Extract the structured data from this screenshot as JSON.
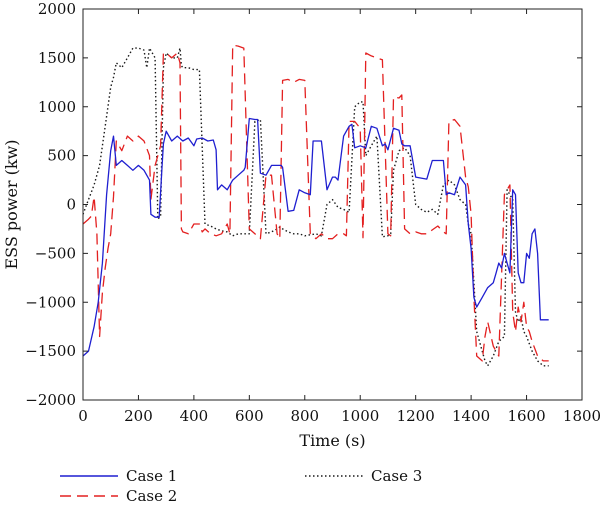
{
  "chart_data": {
    "type": "line",
    "title": "",
    "xlabel": "Time (s)",
    "ylabel": "ESS power (kw)",
    "xlim": [
      0,
      1800
    ],
    "ylim": [
      -2000,
      2000
    ],
    "xticks": [
      0,
      200,
      400,
      600,
      800,
      1000,
      1200,
      1400,
      1600,
      1800
    ],
    "yticks": [
      -2000,
      -1500,
      -1000,
      -500,
      0,
      500,
      1000,
      1500,
      2000
    ],
    "xtick_labels": [
      "0",
      "200",
      "400",
      "600",
      "800",
      "1000",
      "1200",
      "1400",
      "1600",
      "1800"
    ],
    "ytick_labels": [
      "−2000",
      "−1500",
      "−1000",
      "−500",
      "0",
      "500",
      "1000",
      "1500",
      "2000"
    ],
    "grid": false,
    "legend_placement": "bottom",
    "series": [
      {
        "name": "Case 1",
        "color": "#1f1fd0",
        "style": "solid",
        "x": [
          0,
          20,
          40,
          55,
          70,
          85,
          100,
          110,
          120,
          140,
          160,
          180,
          200,
          220,
          240,
          245,
          260,
          275,
          285,
          290,
          300,
          320,
          340,
          360,
          380,
          400,
          410,
          430,
          450,
          470,
          480,
          485,
          500,
          520,
          540,
          560,
          580,
          585,
          600,
          620,
          630,
          640,
          660,
          680,
          700,
          715,
          720,
          740,
          760,
          780,
          800,
          820,
          830,
          840,
          860,
          880,
          900,
          910,
          920,
          940,
          960,
          970,
          980,
          1000,
          1020,
          1040,
          1060,
          1080,
          1090,
          1100,
          1120,
          1140,
          1150,
          1160,
          1180,
          1200,
          1220,
          1240,
          1260,
          1280,
          1300,
          1310,
          1320,
          1340,
          1360,
          1380,
          1390,
          1400,
          1410,
          1420,
          1430,
          1440,
          1460,
          1480,
          1490,
          1500,
          1510,
          1520,
          1530,
          1540,
          1550,
          1560,
          1570,
          1580,
          1590,
          1600,
          1610,
          1620,
          1630,
          1640,
          1650,
          1660,
          1680
        ],
        "values": [
          -1550,
          -1500,
          -1250,
          -1000,
          -600,
          100,
          550,
          700,
          400,
          450,
          400,
          350,
          400,
          350,
          250,
          -100,
          -130,
          -130,
          380,
          620,
          750,
          650,
          700,
          650,
          680,
          600,
          670,
          680,
          650,
          660,
          560,
          150,
          200,
          150,
          250,
          300,
          350,
          380,
          880,
          870,
          870,
          320,
          300,
          400,
          400,
          400,
          380,
          -70,
          -60,
          150,
          120,
          100,
          650,
          650,
          650,
          150,
          280,
          280,
          250,
          700,
          800,
          820,
          580,
          600,
          580,
          800,
          780,
          600,
          620,
          560,
          780,
          760,
          620,
          600,
          600,
          280,
          270,
          260,
          450,
          450,
          450,
          100,
          120,
          100,
          280,
          200,
          -200,
          -450,
          -950,
          -1050,
          -1000,
          -950,
          -850,
          -800,
          -700,
          -600,
          -650,
          -500,
          -600,
          -700,
          150,
          100,
          -700,
          -800,
          -800,
          -500,
          -550,
          -300,
          -250,
          -500,
          -1180,
          -1180,
          -1180
        ]
      },
      {
        "name": "Case 2",
        "color": "#e32020",
        "style": "dashed",
        "x": [
          0,
          20,
          30,
          40,
          50,
          60,
          70,
          80,
          90,
          100,
          110,
          120,
          140,
          160,
          180,
          200,
          220,
          240,
          245,
          260,
          280,
          290,
          300,
          320,
          340,
          350,
          355,
          360,
          380,
          400,
          420,
          430,
          440,
          460,
          480,
          500,
          520,
          530,
          540,
          560,
          580,
          600,
          620,
          640,
          660,
          680,
          700,
          710,
          720,
          740,
          760,
          780,
          800,
          820,
          830,
          840,
          860,
          880,
          900,
          920,
          940,
          950,
          960,
          980,
          1000,
          1010,
          1020,
          1040,
          1060,
          1080,
          1100,
          1110,
          1120,
          1140,
          1150,
          1160,
          1180,
          1200,
          1220,
          1240,
          1260,
          1280,
          1300,
          1310,
          1320,
          1340,
          1360,
          1380,
          1390,
          1400,
          1410,
          1420,
          1440,
          1450,
          1460,
          1480,
          1500,
          1520,
          1530,
          1540,
          1550,
          1560,
          1570,
          1580,
          1590,
          1600,
          1610,
          1620,
          1640,
          1660,
          1680
        ],
        "values": [
          -200,
          -150,
          -120,
          80,
          -300,
          -1350,
          -900,
          -650,
          -450,
          -300,
          80,
          650,
          550,
          700,
          650,
          700,
          650,
          500,
          50,
          400,
          600,
          1550,
          1550,
          1500,
          1550,
          1450,
          -250,
          -280,
          -300,
          -200,
          -200,
          -280,
          -250,
          -300,
          -320,
          -300,
          -200,
          -300,
          1630,
          1620,
          1600,
          -250,
          -300,
          -350,
          300,
          300,
          -300,
          -350,
          1270,
          1280,
          1250,
          1280,
          1270,
          -300,
          -320,
          -350,
          -300,
          -350,
          -350,
          -300,
          -300,
          -320,
          850,
          850,
          780,
          -340,
          1550,
          1520,
          1500,
          1480,
          -300,
          -320,
          1100,
          1090,
          1120,
          -250,
          -300,
          -280,
          -300,
          -300,
          -260,
          -220,
          -280,
          -300,
          850,
          870,
          800,
          280,
          180,
          -100,
          -950,
          -1550,
          -1600,
          -1350,
          -1200,
          -1450,
          -1550,
          100,
          150,
          200,
          -1100,
          -1300,
          -1050,
          -1200,
          -1000,
          -1250,
          -1300,
          -1400,
          -1550,
          -1600,
          -1600
        ]
      },
      {
        "name": "Case 3",
        "color": "#1a1a1a",
        "style": "dotted",
        "x": [
          0,
          20,
          40,
          60,
          80,
          100,
          110,
          120,
          140,
          160,
          180,
          200,
          220,
          230,
          240,
          250,
          260,
          270,
          280,
          290,
          300,
          320,
          340,
          350,
          355,
          360,
          380,
          400,
          420,
          440,
          460,
          480,
          500,
          520,
          530,
          540,
          560,
          580,
          600,
          620,
          640,
          660,
          680,
          700,
          710,
          720,
          740,
          760,
          780,
          800,
          820,
          840,
          860,
          880,
          900,
          920,
          940,
          960,
          980,
          1000,
          1010,
          1020,
          1040,
          1060,
          1080,
          1100,
          1110,
          1120,
          1140,
          1160,
          1180,
          1200,
          1220,
          1240,
          1260,
          1280,
          1300,
          1320,
          1340,
          1360,
          1380,
          1390,
          1400,
          1410,
          1420,
          1440,
          1450,
          1460,
          1480,
          1500,
          1520,
          1530,
          1540,
          1550,
          1560,
          1570,
          1580,
          1590,
          1600,
          1620,
          1640,
          1660,
          1680
        ],
        "values": [
          -100,
          50,
          200,
          400,
          800,
          1200,
          1300,
          1450,
          1400,
          1500,
          1600,
          1600,
          1580,
          1400,
          1600,
          1550,
          1500,
          -150,
          -120,
          1400,
          1550,
          1500,
          1500,
          1600,
          1420,
          1400,
          1400,
          1380,
          1380,
          -200,
          -220,
          -250,
          -270,
          -280,
          -300,
          -320,
          -300,
          -300,
          -300,
          850,
          870,
          -300,
          -280,
          -250,
          -230,
          -250,
          -280,
          -300,
          -300,
          -320,
          -310,
          -300,
          -320,
          0,
          50,
          -30,
          -50,
          -80,
          1000,
          1050,
          1050,
          500,
          600,
          700,
          -330,
          -320,
          -300,
          350,
          550,
          580,
          500,
          0,
          -50,
          -80,
          -50,
          -100,
          200,
          250,
          200,
          50,
          0,
          -200,
          -300,
          -800,
          -1300,
          -1500,
          -1600,
          -1650,
          -1550,
          -1400,
          -1350,
          150,
          100,
          50,
          -1100,
          -1200,
          -1150,
          -1300,
          -1350,
          -1500,
          -1600,
          -1650,
          -1650
        ]
      }
    ]
  }
}
